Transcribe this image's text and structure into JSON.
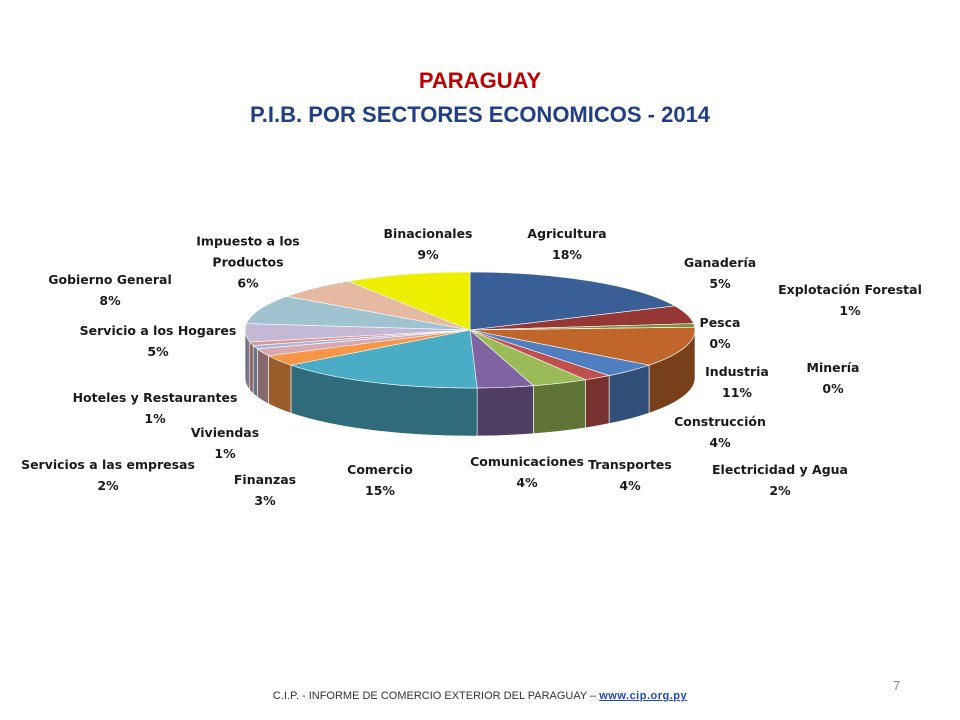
{
  "chart_data": {
    "type": "pie",
    "title": "PARAGUAY",
    "subtitle": "P.I.B. POR SECTORES ECONOMICOS - 2014",
    "categories": [
      "Agricultura",
      "Ganadería",
      "Explotación Forestal",
      "Pesca",
      "Minería",
      "Industria",
      "Construcción",
      "Electricidad y Agua",
      "Transportes",
      "Comunicaciones",
      "Comercio",
      "Finanzas",
      "Servicios a las empresas",
      "Viviendas",
      "Hoteles y Restaurantes",
      "Servicio a los Hogares",
      "Gobierno General",
      "Impuesto a los Productos",
      "Binacionales"
    ],
    "values": [
      18,
      5,
      1,
      0,
      0,
      11,
      4,
      2,
      4,
      4,
      15,
      3,
      2,
      1,
      1,
      5,
      8,
      6,
      9
    ],
    "value_labels": [
      "18%",
      "5%",
      "1%",
      "0%",
      "0%",
      "11%",
      "4%",
      "2%",
      "4%",
      "4%",
      "15%",
      "3%",
      "2%",
      "1%",
      "1%",
      "5%",
      "8%",
      "6%",
      "9%"
    ],
    "colors": [
      "#3a5f96",
      "#953735",
      "#76923c",
      "#5f497a",
      "#31859c",
      "#c0662a",
      "#4f7fc0",
      "#c0504d",
      "#9bbb59",
      "#8064a2",
      "#4bacc6",
      "#f79646",
      "#d9a7b0",
      "#a6b6d8",
      "#d99694",
      "#c3b9d6",
      "#9fc3d0",
      "#e6b9a3",
      "#eeee00"
    ]
  },
  "footer": {
    "text": "C.I.P. - INFORME DE COMERCIO EXTERIOR DEL PARAGUAY –",
    "link": "www.cip.org.py",
    "page_number": "7"
  }
}
